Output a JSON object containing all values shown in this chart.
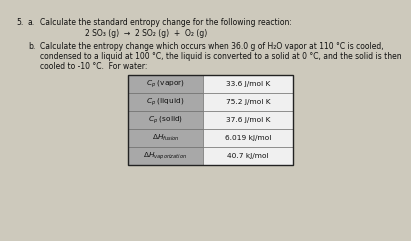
{
  "number": "5.",
  "part_a_label": "a.",
  "part_a_text": "Calculate the standard entropy change for the following reaction:",
  "part_a_reaction": "2 SO₃ (g)  →  2 SO₂ (g)  +  O₂ (g)",
  "part_b_label": "b.",
  "part_b_line1": "Calculate the entropy change which occurs when 36.0 g of H₂O vapor at 110 °C is cooled,",
  "part_b_line2": "condensed to a liquid at 100 °C, the liquid is converted to a solid at 0 °C, and the solid is then",
  "part_b_line3": "cooled to -10 °C.  For water:",
  "col_values": [
    "33.6 J/mol K",
    "75.2 J/mol K",
    "37.6 J/mol K",
    "6.019 kJ/mol",
    "40.7 kJ/mol"
  ],
  "label_cell_bg": "#a8a8a8",
  "value_cell_bg": "#f0f0f0",
  "text_color": "#111111",
  "bg_color": "#cdc9bc",
  "font_size": 5.5,
  "font_size_table": 5.3
}
